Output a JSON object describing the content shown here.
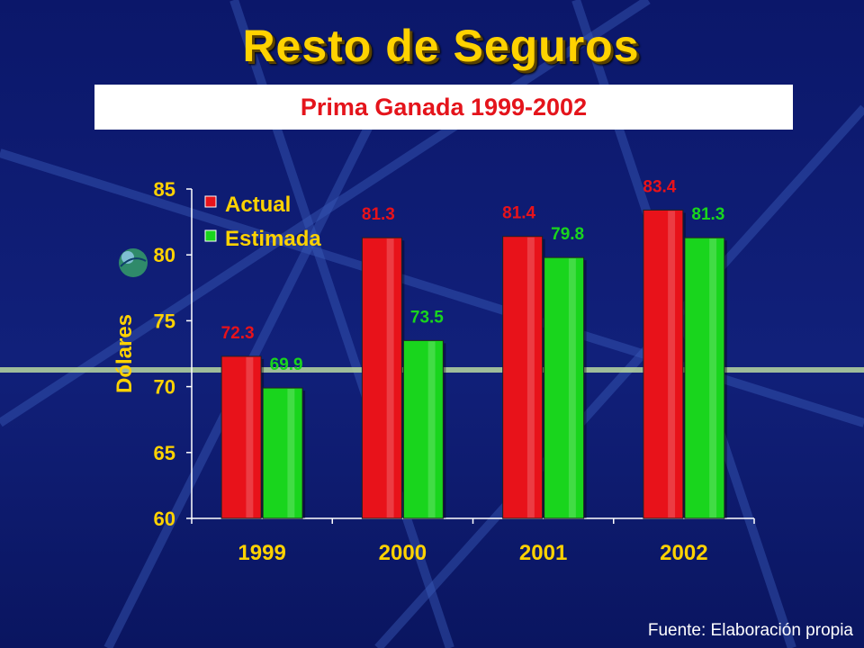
{
  "slide": {
    "title": "Resto de Seguros",
    "footer": "Fuente: Elaboración propia"
  },
  "colors": {
    "background": "#0d1a6e",
    "title": "#ffd200",
    "actual": "#e8121a",
    "estimada": "#19d51d",
    "axis_text": "#ffd200"
  },
  "chart_data": {
    "type": "bar",
    "title": "Prima Ganada 1999-2002",
    "categories": [
      "1999",
      "2000",
      "2001",
      "2002"
    ],
    "series": [
      {
        "name": "Actual",
        "values": [
          72.3,
          81.3,
          81.4,
          83.4
        ],
        "labels": [
          "72.3",
          "81.3",
          "81.4",
          "83.4"
        ]
      },
      {
        "name": "Estimada",
        "values": [
          69.9,
          73.5,
          79.8,
          81.3
        ],
        "labels": [
          "69.9",
          "73.5",
          "79.8",
          "81.3"
        ]
      }
    ],
    "ylabel": "Dólares",
    "xlabel": "",
    "ylim": [
      60,
      85
    ],
    "yticks": [
      "60",
      "65",
      "70",
      "75",
      "80",
      "85"
    ],
    "legend": "top-left",
    "grid": false
  }
}
